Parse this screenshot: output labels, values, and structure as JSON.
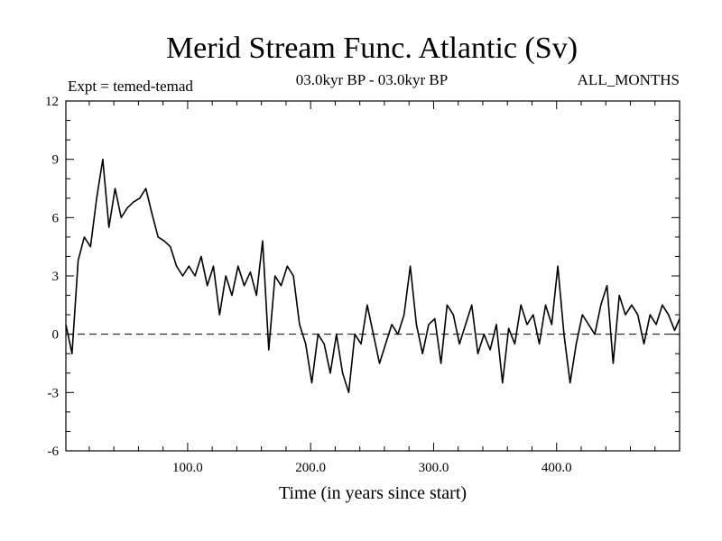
{
  "chart_data": {
    "type": "line",
    "title": "Merid Stream Func. Atlantic (Sv)",
    "expt_label": "Expt = temed-temad",
    "period_label": "03.0kyr BP - 03.0kyr BP",
    "months_label": "ALL_MONTHS",
    "xlabel": "Time (in years since start)",
    "ylabel": "",
    "xlim": [
      1,
      500
    ],
    "ylim": [
      -6,
      12
    ],
    "xticks": [
      100,
      200,
      300,
      400
    ],
    "xtick_labels": [
      "100.0",
      "200.0",
      "300.0",
      "400.0"
    ],
    "yticks": [
      -6,
      -3,
      0,
      3,
      6,
      9,
      12
    ],
    "ytick_labels": [
      "-6",
      "-3",
      "0",
      "3",
      "6",
      "9",
      "12"
    ],
    "reference_line": 0,
    "grid": false,
    "series": [
      {
        "name": "Merid Stream Func. Atlantic",
        "x": [
          1,
          6,
          11,
          16,
          21,
          26,
          31,
          36,
          41,
          46,
          51,
          56,
          61,
          66,
          71,
          76,
          81,
          86,
          91,
          96,
          101,
          106,
          111,
          116,
          121,
          126,
          131,
          136,
          141,
          146,
          151,
          156,
          161,
          166,
          171,
          176,
          181,
          186,
          191,
          196,
          201,
          206,
          211,
          216,
          221,
          226,
          231,
          236,
          241,
          246,
          251,
          256,
          261,
          266,
          271,
          276,
          281,
          286,
          291,
          296,
          301,
          306,
          311,
          316,
          321,
          326,
          331,
          336,
          341,
          346,
          351,
          356,
          361,
          366,
          371,
          376,
          381,
          386,
          391,
          396,
          401,
          406,
          411,
          416,
          421,
          426,
          431,
          436,
          441,
          446,
          451,
          456,
          461,
          466,
          471,
          476,
          481,
          486,
          491,
          496,
          500
        ],
        "values": [
          0.5,
          -1.0,
          3.8,
          5.0,
          4.5,
          7.0,
          9.0,
          5.5,
          7.5,
          6.0,
          6.5,
          6.8,
          7.0,
          7.5,
          6.2,
          5.0,
          4.8,
          4.5,
          3.5,
          3.0,
          3.5,
          3.0,
          4.0,
          2.5,
          3.5,
          1.0,
          3.0,
          2.0,
          3.5,
          2.5,
          3.2,
          2.0,
          4.8,
          -0.8,
          3.0,
          2.5,
          3.5,
          3.0,
          0.5,
          -0.5,
          -2.5,
          0.0,
          -0.5,
          -2.0,
          0.0,
          -2.0,
          -3.0,
          0.0,
          -0.5,
          1.5,
          0.0,
          -1.5,
          -0.5,
          0.5,
          0.0,
          1.0,
          3.5,
          0.5,
          -1.0,
          0.5,
          0.8,
          -1.5,
          1.5,
          1.0,
          -0.5,
          0.5,
          1.5,
          -1.0,
          0.0,
          -0.8,
          0.5,
          -2.5,
          0.3,
          -0.5,
          1.5,
          0.5,
          1.0,
          -0.5,
          1.5,
          0.5,
          3.5,
          0.0,
          -2.5,
          -0.5,
          1.0,
          0.5,
          0.0,
          1.5,
          2.5,
          -1.5,
          2.0,
          1.0,
          1.5,
          1.0,
          -0.5,
          1.0,
          0.5,
          1.5,
          1.0,
          0.2,
          0.8
        ]
      }
    ]
  }
}
